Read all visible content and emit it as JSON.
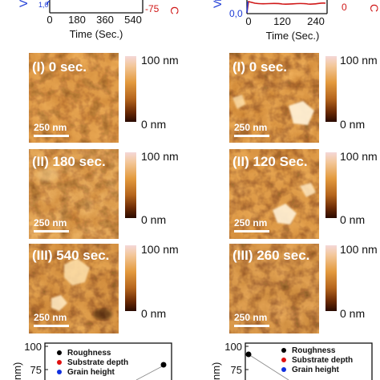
{
  "colors": {
    "afm_dark": "#3a1400",
    "afm_mid": "#b5651d",
    "afm_light": "#f3c070",
    "afm_high": "#ffe2ad",
    "colorbar_top": "#f2d2d2",
    "colorbar_bottom": "#2a0a00",
    "blue_axis": "#1d3bd6",
    "red_axis": "#d01818",
    "roughness": "#000000",
    "substrate": "#e01010",
    "grain": "#1030e0"
  },
  "top_left_plot": {
    "left_axis_label": "V",
    "right_axis_label": "C",
    "right_tick": "-75",
    "xlabel": "Time (Sec.)",
    "x_ticks": [
      "0",
      "180",
      "360",
      "540"
    ]
  },
  "top_right_plot": {
    "left_axis_label": "V",
    "right_axis_label": "C",
    "left_tick": "0,0",
    "right_tick": "0",
    "xlabel": "Time (Sec.)",
    "x_ticks": [
      "0",
      "120",
      "240"
    ]
  },
  "left_column": {
    "panels": [
      {
        "label": "(I) 0 sec.",
        "scale": "250 nm",
        "cb_top": "100 nm",
        "cb_bottom": "0 nm"
      },
      {
        "label": "(II) 180 sec.",
        "scale": "250 nm",
        "cb_top": "100 nm",
        "cb_bottom": "0 nm"
      },
      {
        "label": "(III) 540 sec.",
        "scale": "250 nm",
        "cb_top": "100 nm",
        "cb_bottom": "0 nm"
      }
    ]
  },
  "right_column": {
    "panels": [
      {
        "label": "(I) 0 sec.",
        "scale": "250 nm",
        "cb_top": "100 nm",
        "cb_bottom": "0 nm"
      },
      {
        "label": "(II) 120 Sec.",
        "scale": "250 nm",
        "cb_top": "100 nm",
        "cb_bottom": "0 nm"
      },
      {
        "label": "(III) 260 sec.",
        "scale": "250 nm",
        "cb_top": "100 nm",
        "cb_bottom": "0 nm"
      }
    ]
  },
  "bottom_left_chart": {
    "ylabel_visible": "nm)",
    "y_ticks": [
      "100",
      "75"
    ],
    "legend": [
      "Roughness",
      "Substrate depth",
      "Grain height"
    ],
    "roughness_point_y": 79
  },
  "bottom_right_chart": {
    "ylabel_visible": "nm)",
    "y_ticks": [
      "100",
      "75"
    ],
    "legend": [
      "Roughness",
      "Substrate depth",
      "Grain height"
    ],
    "roughness_point_y": 90
  }
}
